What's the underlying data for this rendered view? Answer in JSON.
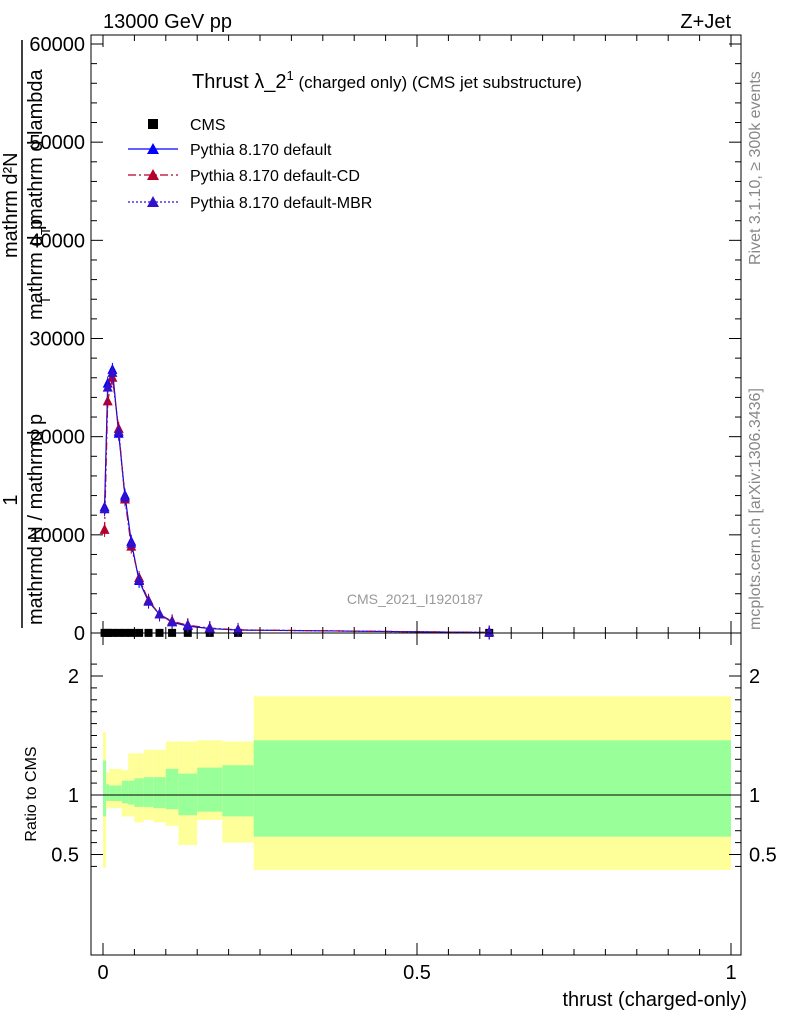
{
  "header": {
    "left": "13000 GeV pp",
    "right": "Z+Jet",
    "watermark": "CMS_2021_I1920187",
    "side_top": "Rivet 3.1.10, ≥ 300k events",
    "side_bottom": "mcplots.cern.ch [arXiv:1306.3436]"
  },
  "main_plot": {
    "title": "Thrust λ_2",
    "title_sup": "1",
    "title_rest": " (charged only) (CMS jet substructure)",
    "ylabel_line1": "1",
    "ylabel_line2": "mathrmd N / mathrmd p",
    "ylabel_line3": "mathrm d²N",
    "ylabel_line4": "mathrm d p",
    "ylabel_line5": "T",
    "ylabel_line6": "mathrm d lambda",
    "ylabel_line7": "T"
  },
  "ratio_plot": {
    "ylabel": "Ratio to CMS",
    "xlabel": "thrust (charged-only)"
  },
  "legend": [
    {
      "label": "CMS",
      "color": "#000000",
      "marker": "square",
      "line": "none"
    },
    {
      "label": "Pythia 8.170 default",
      "color": "#0000ff",
      "marker": "triangle",
      "line": "solid"
    },
    {
      "label": "Pythia 8.170 default-CD",
      "color": "#b5002a",
      "marker": "triangle",
      "line": "dashdot"
    },
    {
      "label": "Pythia 8.170 default-MBR",
      "color": "#3311cc",
      "marker": "triangle",
      "line": "dotted"
    }
  ],
  "chart_data": {
    "type": "line",
    "xlim": [
      -0.02,
      1.0
    ],
    "ylim": [
      0,
      60000
    ],
    "ratio_ylim": [
      0.35,
      2.25
    ],
    "x_ticks": [
      "0",
      "0.5",
      "1"
    ],
    "y_ticks": [
      "0",
      "10000",
      "20000",
      "30000",
      "40000",
      "50000",
      "60000"
    ],
    "ratio_ticks": [
      "0.5",
      "1",
      "2"
    ],
    "series": [
      {
        "name": "CMS",
        "x": [
          0.0025,
          0.0075,
          0.015,
          0.025,
          0.035,
          0.045,
          0.0575,
          0.0725,
          0.09,
          0.11,
          0.135,
          0.17,
          0.215,
          0.615
        ],
        "values": [
          12,
          12,
          12,
          12,
          12,
          12,
          12,
          12,
          12,
          12,
          12,
          12,
          12,
          12
        ]
      },
      {
        "name": "Pythia 8.170 default",
        "x": [
          0.0025,
          0.0075,
          0.015,
          0.025,
          0.035,
          0.045,
          0.0575,
          0.0725,
          0.09,
          0.11,
          0.135,
          0.17,
          0.215,
          0.615
        ],
        "values": [
          12800,
          25400,
          26800,
          20300,
          14000,
          9300,
          5300,
          3200,
          1900,
          1100,
          700,
          450,
          300,
          50
        ]
      },
      {
        "name": "Pythia 8.170 default-CD",
        "x": [
          0.0025,
          0.0075,
          0.015,
          0.025,
          0.035,
          0.045,
          0.0575,
          0.0725,
          0.09,
          0.11,
          0.135,
          0.17,
          0.215,
          0.615
        ],
        "values": [
          10500,
          23600,
          26000,
          20800,
          13600,
          8800,
          5600,
          3300,
          1900,
          1200,
          800,
          500,
          320,
          50
        ]
      },
      {
        "name": "Pythia 8.170 default-MBR",
        "x": [
          0.0025,
          0.0075,
          0.015,
          0.025,
          0.035,
          0.045,
          0.0575,
          0.0725,
          0.09,
          0.11,
          0.135,
          0.17,
          0.215,
          0.615
        ],
        "values": [
          12600,
          25000,
          26500,
          20500,
          13800,
          9100,
          5400,
          3200,
          1900,
          1100,
          750,
          470,
          310,
          50
        ]
      }
    ],
    "ratio_bands": {
      "bins": [
        [
          0.0,
          0.005
        ],
        [
          0.005,
          0.01
        ],
        [
          0.01,
          0.02
        ],
        [
          0.02,
          0.03
        ],
        [
          0.03,
          0.04
        ],
        [
          0.04,
          0.05
        ],
        [
          0.05,
          0.065
        ],
        [
          0.065,
          0.08
        ],
        [
          0.08,
          0.1
        ],
        [
          0.1,
          0.12
        ],
        [
          0.12,
          0.15
        ],
        [
          0.15,
          0.19
        ],
        [
          0.19,
          0.24
        ],
        [
          0.24,
          1.0
        ]
      ],
      "stat_lo": [
        0.82,
        0.95,
        0.95,
        0.95,
        0.93,
        0.92,
        0.9,
        0.9,
        0.89,
        0.88,
        0.83,
        0.86,
        0.82,
        0.65
      ],
      "stat_hi": [
        1.29,
        1.09,
        1.08,
        1.08,
        1.12,
        1.12,
        1.14,
        1.15,
        1.15,
        1.22,
        1.18,
        1.23,
        1.25,
        1.46
      ],
      "tot_lo": [
        0.39,
        0.89,
        0.89,
        0.89,
        0.82,
        0.82,
        0.77,
        0.79,
        0.77,
        0.74,
        0.58,
        0.79,
        0.6,
        0.37
      ],
      "tot_hi": [
        1.53,
        1.19,
        1.22,
        1.22,
        1.21,
        1.35,
        1.35,
        1.38,
        1.38,
        1.45,
        1.45,
        1.46,
        1.45,
        1.83
      ]
    }
  }
}
